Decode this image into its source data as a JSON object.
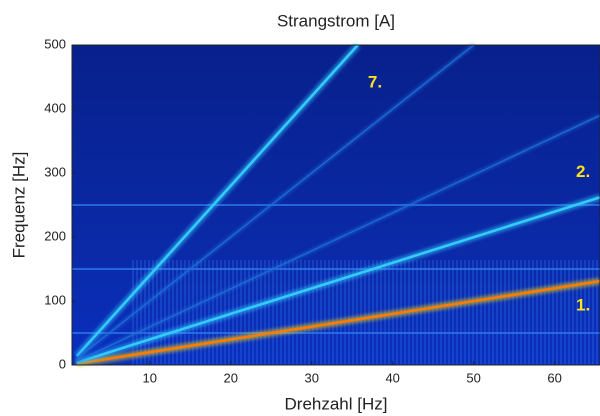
{
  "chart_data": {
    "type": "line",
    "title": "Strangstrom [A]",
    "x_label": "Drehzahl [Hz]",
    "y_label": "Frequenz [Hz]",
    "xlim": [
      0.4,
      65.6
    ],
    "xticks": [
      10,
      20,
      30,
      40,
      50,
      60
    ],
    "ylim": [
      0,
      500
    ],
    "yticks": [
      0,
      100,
      200,
      300,
      400,
      500
    ],
    "hum_lines": [
      50,
      150,
      250
    ],
    "series": [
      {
        "name": "1.",
        "color": "#ffe000",
        "x": [
          1,
          65.6
        ],
        "values": [
          2,
          131
        ]
      },
      {
        "name": "2.",
        "color": "#33ccff",
        "x": [
          1,
          65.6
        ],
        "values": [
          4,
          262
        ]
      },
      {
        "name": "7.",
        "color": "#33ccff",
        "x": [
          1,
          35.7
        ],
        "values": [
          14,
          500
        ]
      },
      {
        "color": "#1f6fd8",
        "x": [
          1,
          50
        ],
        "values": [
          10,
          500
        ]
      },
      {
        "color": "#1f6fd8",
        "x": [
          1,
          65.6
        ],
        "values": [
          6,
          390
        ]
      }
    ]
  }
}
